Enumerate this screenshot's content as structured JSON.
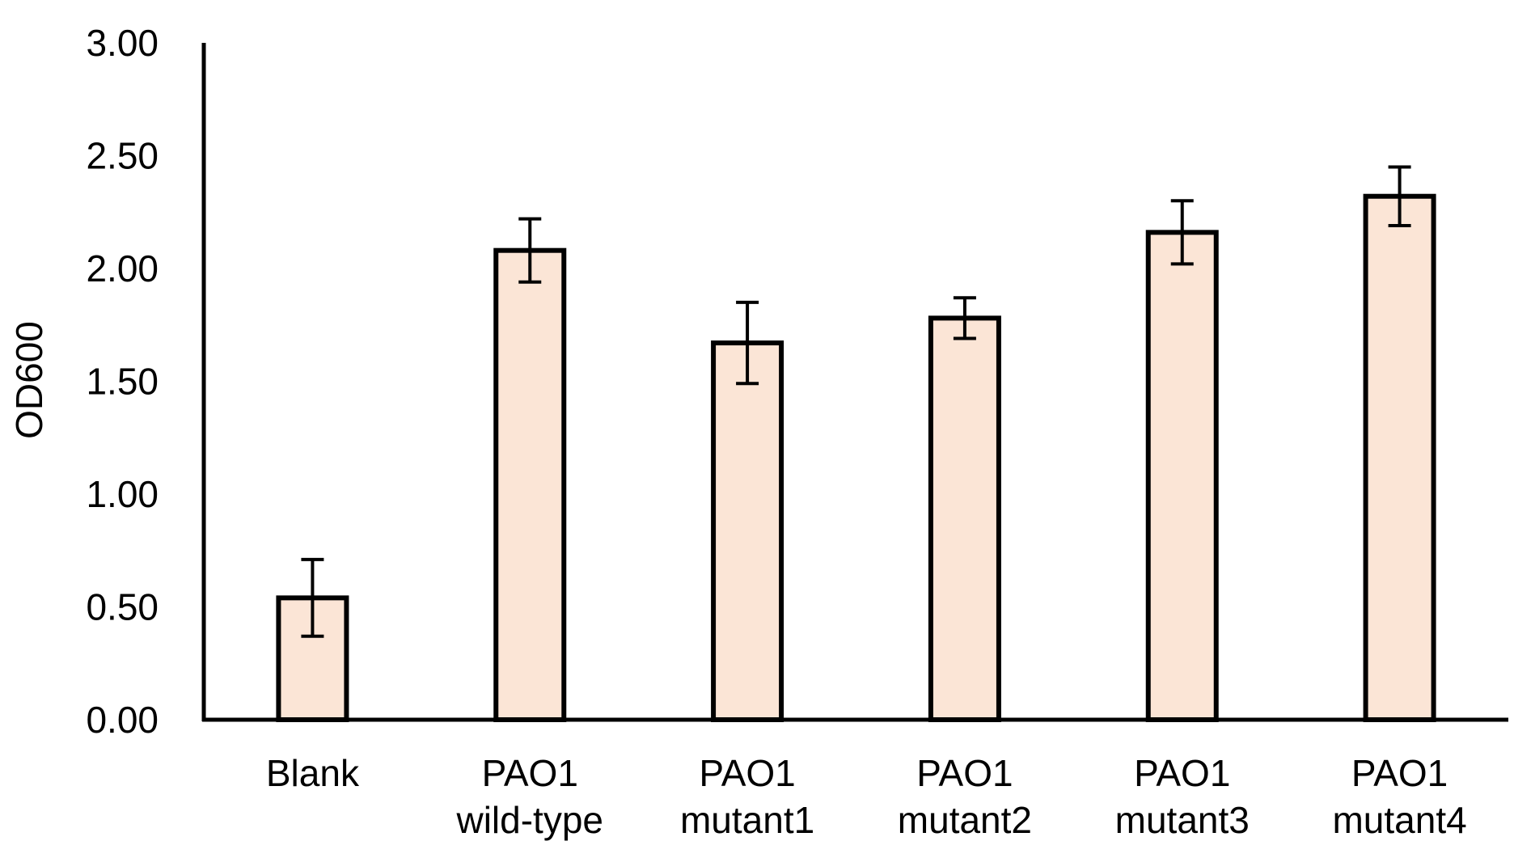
{
  "chart_data": {
    "type": "bar",
    "title": "",
    "xlabel": "",
    "ylabel": "OD600",
    "ylim": [
      0,
      3
    ],
    "yticks": [
      "0.00",
      "0.50",
      "1.00",
      "1.50",
      "2.00",
      "2.50",
      "3.00"
    ],
    "grid": false,
    "legend": "none",
    "categories": [
      [
        "Blank"
      ],
      [
        "PAO1",
        "wild-type"
      ],
      [
        "PAO1",
        "mutant1"
      ],
      [
        "PAO1",
        "mutant2"
      ],
      [
        "PAO1",
        "mutant3"
      ],
      [
        "PAO1",
        "mutant4"
      ]
    ],
    "values": [
      0.54,
      2.08,
      1.67,
      1.78,
      2.16,
      2.32
    ],
    "error": [
      0.17,
      0.14,
      0.18,
      0.09,
      0.14,
      0.13
    ],
    "colors": {
      "bar_fill": "#fbe5d6",
      "bar_stroke": "#000000",
      "axis": "#000000"
    }
  }
}
